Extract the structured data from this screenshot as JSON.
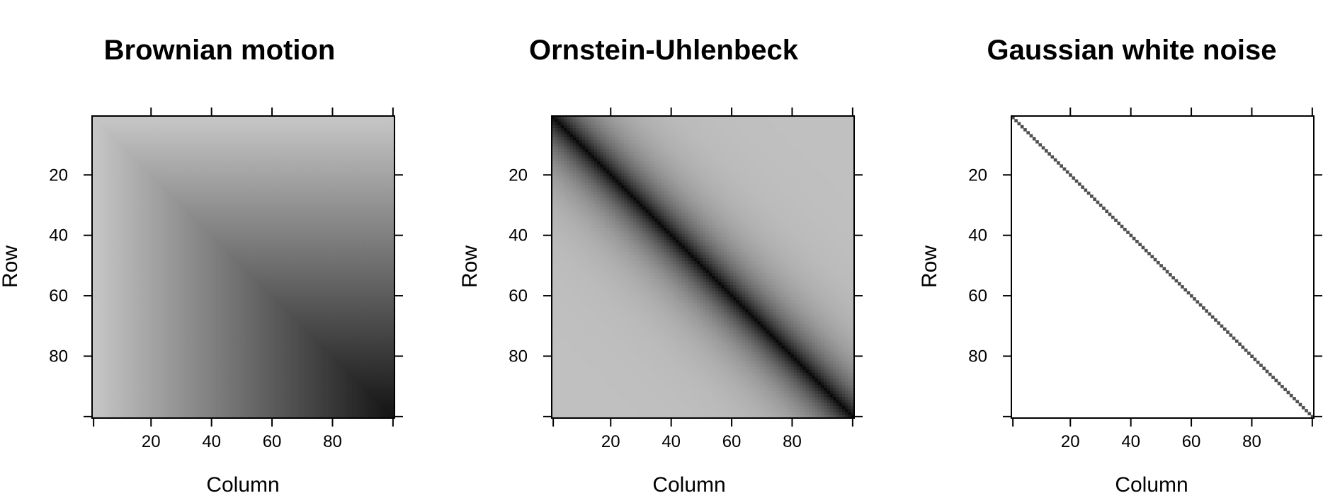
{
  "chart_data": [
    {
      "type": "heatmap",
      "title": "Brownian motion",
      "xlabel": "Column",
      "ylabel": "Row",
      "matrix_size": 100,
      "kernel": "min(i,j)",
      "x_ticks": [
        20,
        40,
        60,
        80
      ],
      "y_ticks": [
        20,
        40,
        60,
        80
      ],
      "xlim": [
        1,
        100
      ],
      "ylim": [
        100,
        1
      ],
      "colormap": "grey, light for small values to black for large values"
    },
    {
      "type": "heatmap",
      "title": "Ornstein-Uhlenbeck",
      "xlabel": "Column",
      "ylabel": "Row",
      "matrix_size": 100,
      "kernel": "exp(-|i-j|)",
      "x_ticks": [
        20,
        40,
        60,
        80
      ],
      "y_ticks": [
        20,
        40,
        60,
        80
      ],
      "xlim": [
        1,
        100
      ],
      "ylim": [
        100,
        1
      ],
      "colormap": "grey, light for small values to black for large values"
    },
    {
      "type": "heatmap",
      "title": "Gaussian white noise",
      "xlabel": "Column",
      "ylabel": "Row",
      "matrix_size": 100,
      "kernel": "identity (1 if i=j else 0)",
      "x_ticks": [
        20,
        40,
        60,
        80
      ],
      "y_ticks": [
        20,
        40,
        60,
        80
      ],
      "xlim": [
        1,
        100
      ],
      "ylim": [
        100,
        1
      ],
      "colormap": "white for 0, dark grey for 1"
    }
  ]
}
